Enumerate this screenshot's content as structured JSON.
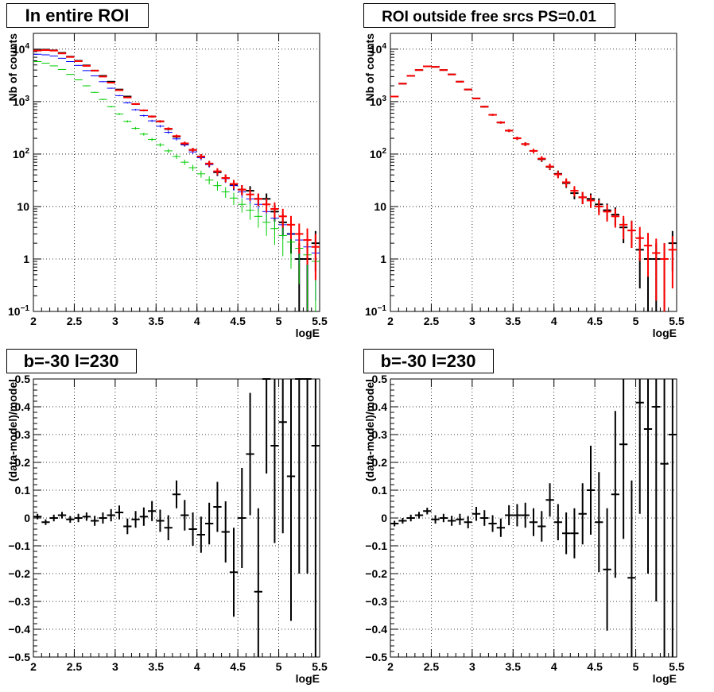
{
  "chart_data": [
    {
      "type": "errorbar",
      "title": "In entire ROI",
      "xlabel": "logE",
      "ylabel": "Nb of counts",
      "xlim": [
        2,
        5.5
      ],
      "ylim": [
        0.1,
        20000
      ],
      "yscale": "log",
      "grid": true,
      "x_ticks": [
        "2",
        "2.5",
        "3",
        "3.5",
        "4",
        "4.5",
        "5",
        "5.5"
      ],
      "y_ticks": [
        "10^-1",
        "1",
        "10",
        "10^2",
        "10^3",
        "10^4"
      ],
      "x": [
        2.05,
        2.15,
        2.25,
        2.35,
        2.45,
        2.55,
        2.65,
        2.75,
        2.85,
        2.95,
        3.05,
        3.15,
        3.25,
        3.35,
        3.45,
        3.55,
        3.65,
        3.75,
        3.85,
        3.95,
        4.05,
        4.15,
        4.25,
        4.35,
        4.45,
        4.55,
        4.65,
        4.75,
        4.85,
        4.95,
        5.05,
        5.15,
        5.25,
        5.35,
        5.45
      ],
      "series": [
        {
          "name": "",
          "color": "#000000",
          "values": [
            9500,
            9800,
            9500,
            8500,
            7200,
            6000,
            4900,
            3900,
            3100,
            2400,
            1700,
            1250,
            900,
            680,
            520,
            420,
            300,
            215,
            155,
            120,
            90,
            65,
            45,
            35,
            26,
            21,
            20,
            14,
            14,
            8,
            5,
            3,
            1,
            1,
            2
          ]
        },
        {
          "name": "",
          "color": "#0000ff",
          "values": [
            8000,
            7800,
            7400,
            6700,
            5800,
            4900,
            3900,
            3100,
            2400,
            1800,
            1300,
            950,
            700,
            540,
            430,
            340,
            260,
            195,
            150,
            110,
            85,
            63,
            46,
            34,
            25,
            19,
            14,
            11,
            8,
            6,
            4.5,
            3,
            2.3,
            1.7,
            1.3
          ]
        },
        {
          "name": "",
          "color": "#00cc00",
          "values": [
            5800,
            5400,
            4800,
            4100,
            3300,
            2600,
            2000,
            1500,
            1100,
            800,
            580,
            420,
            310,
            240,
            190,
            150,
            115,
            90,
            70,
            55,
            42,
            32,
            25,
            19,
            14.5,
            11,
            8.5,
            6.5,
            5,
            3.8,
            2.8,
            2.1,
            1.6,
            1.2,
            0.9
          ]
        },
        {
          "name": "",
          "color": "#ff0000",
          "values": [
            9400,
            9600,
            9400,
            8300,
            7100,
            5900,
            4800,
            3900,
            3000,
            2300,
            1650,
            1200,
            900,
            680,
            520,
            420,
            305,
            220,
            160,
            120,
            90,
            66,
            47,
            35,
            27,
            21,
            17,
            14,
            11,
            9,
            6.5,
            4.5,
            3,
            2.3,
            1.7
          ]
        }
      ]
    },
    {
      "type": "errorbar",
      "title": "ROI outside free srcs PS=0.01",
      "xlabel": "logE",
      "ylabel": "Nb of counts",
      "xlim": [
        2,
        5.5
      ],
      "ylim": [
        0.1,
        20000
      ],
      "yscale": "log",
      "grid": true,
      "x_ticks": [
        "2",
        "2.5",
        "3",
        "3.5",
        "4",
        "4.5",
        "5",
        "5.5"
      ],
      "y_ticks": [
        "10^-1",
        "1",
        "10",
        "10^2",
        "10^3",
        "10^4"
      ],
      "x": [
        2.05,
        2.15,
        2.25,
        2.35,
        2.45,
        2.55,
        2.65,
        2.75,
        2.85,
        2.95,
        3.05,
        3.15,
        3.25,
        3.35,
        3.45,
        3.55,
        3.65,
        3.75,
        3.85,
        3.95,
        4.05,
        4.15,
        4.25,
        4.35,
        4.45,
        4.55,
        4.65,
        4.75,
        4.85,
        4.95,
        5.05,
        5.15,
        5.25,
        5.35,
        5.45
      ],
      "series": [
        {
          "name": "",
          "color": "#000000",
          "values": [
            1250,
            2200,
            3100,
            4000,
            4700,
            4600,
            4000,
            3300,
            2400,
            1700,
            1150,
            800,
            560,
            400,
            280,
            200,
            155,
            115,
            80,
            57,
            42,
            28,
            18,
            15,
            14,
            11,
            8.5,
            7,
            4,
            3.5,
            1.5,
            1,
            1,
            1,
            2
          ]
        },
        {
          "name": "",
          "color": "#ff0000",
          "values": [
            1250,
            2200,
            3100,
            4000,
            4700,
            4600,
            4000,
            3300,
            2400,
            1700,
            1150,
            800,
            560,
            400,
            280,
            200,
            155,
            115,
            82,
            58,
            41,
            29,
            20,
            15,
            13,
            10,
            8,
            6.5,
            4.5,
            3.5,
            2.5,
            1.8,
            1.3,
            1,
            1.5
          ]
        }
      ]
    },
    {
      "type": "errorbar",
      "title": "b=-30 l=230",
      "xlabel": "logE",
      "ylabel": "(data-model)/model",
      "xlim": [
        2,
        5.5
      ],
      "ylim": [
        -0.5,
        0.5
      ],
      "grid": true,
      "x_ticks": [
        "2",
        "2.5",
        "3",
        "3.5",
        "4",
        "4.5",
        "5",
        "5.5"
      ],
      "y_ticks": [
        "-0.5",
        "-0.4",
        "-0.3",
        "-0.2",
        "-0.1",
        "0",
        "0.1",
        "0.2",
        "0.3",
        "0.4",
        "0.5"
      ],
      "x": [
        2.05,
        2.15,
        2.25,
        2.35,
        2.45,
        2.55,
        2.65,
        2.75,
        2.85,
        2.95,
        3.05,
        3.15,
        3.25,
        3.35,
        3.45,
        3.55,
        3.65,
        3.75,
        3.85,
        3.95,
        4.05,
        4.15,
        4.25,
        4.35,
        4.45,
        4.55,
        4.65,
        4.75,
        4.85,
        4.95,
        5.05,
        5.15,
        5.25,
        5.35,
        5.45
      ],
      "y": [
        0.005,
        -0.015,
        0.0,
        0.01,
        -0.005,
        0.0,
        0.005,
        -0.01,
        0.0,
        0.01,
        0.02,
        -0.03,
        -0.005,
        0.005,
        0.025,
        -0.01,
        -0.035,
        0.085,
        0.01,
        -0.04,
        -0.06,
        -0.02,
        0.04,
        -0.05,
        -0.195,
        0.0,
        0.23,
        -0.265,
        0.5,
        0.26,
        0.345,
        0.15,
        0.5,
        0.5,
        0.26
      ],
      "yerr": [
        0.01,
        0.01,
        0.012,
        0.012,
        0.012,
        0.015,
        0.015,
        0.018,
        0.02,
        0.022,
        0.025,
        0.028,
        0.03,
        0.033,
        0.036,
        0.04,
        0.045,
        0.05,
        0.055,
        0.06,
        0.065,
        0.075,
        0.09,
        0.11,
        0.16,
        0.18,
        0.22,
        0.3,
        0.34,
        0.35,
        0.4,
        0.52,
        0.7,
        0.7,
        0.8
      ],
      "series": [
        {
          "name": "",
          "color": "#000000"
        }
      ]
    },
    {
      "type": "errorbar",
      "title": "b=-30 l=230",
      "xlabel": "logE",
      "ylabel": "(data-model)/model",
      "xlim": [
        2,
        5.5
      ],
      "ylim": [
        -0.5,
        0.5
      ],
      "grid": true,
      "x_ticks": [
        "2",
        "2.5",
        "3",
        "3.5",
        "4",
        "4.5",
        "5",
        "5.5"
      ],
      "y_ticks": [
        "-0.5",
        "-0.4",
        "-0.3",
        "-0.2",
        "-0.1",
        "0",
        "0.1",
        "0.2",
        "0.3",
        "0.4",
        "0.5"
      ],
      "x": [
        2.05,
        2.15,
        2.25,
        2.35,
        2.45,
        2.55,
        2.65,
        2.75,
        2.85,
        2.95,
        3.05,
        3.15,
        3.25,
        3.35,
        3.45,
        3.55,
        3.65,
        3.75,
        3.85,
        3.95,
        4.05,
        4.15,
        4.25,
        4.35,
        4.45,
        4.55,
        4.65,
        4.75,
        4.85,
        4.95,
        5.05,
        5.15,
        5.25,
        5.35,
        5.45
      ],
      "y": [
        -0.02,
        -0.01,
        0.0,
        0.01,
        0.025,
        -0.005,
        0.0,
        -0.01,
        -0.005,
        -0.015,
        0.015,
        0.0,
        -0.02,
        -0.035,
        0.01,
        0.01,
        0.01,
        -0.015,
        -0.03,
        0.065,
        -0.015,
        -0.055,
        -0.055,
        0.015,
        0.1,
        -0.015,
        -0.185,
        0.085,
        0.265,
        -0.215,
        0.415,
        0.32,
        0.4,
        0.195,
        0.3
      ],
      "yerr": [
        0.01,
        0.01,
        0.012,
        0.012,
        0.012,
        0.015,
        0.015,
        0.018,
        0.02,
        0.022,
        0.025,
        0.028,
        0.03,
        0.033,
        0.036,
        0.04,
        0.045,
        0.05,
        0.055,
        0.06,
        0.065,
        0.075,
        0.09,
        0.11,
        0.16,
        0.18,
        0.22,
        0.3,
        0.34,
        0.35,
        0.4,
        0.52,
        0.7,
        0.7,
        0.8
      ],
      "series": [
        {
          "name": "",
          "color": "#000000"
        }
      ]
    }
  ]
}
